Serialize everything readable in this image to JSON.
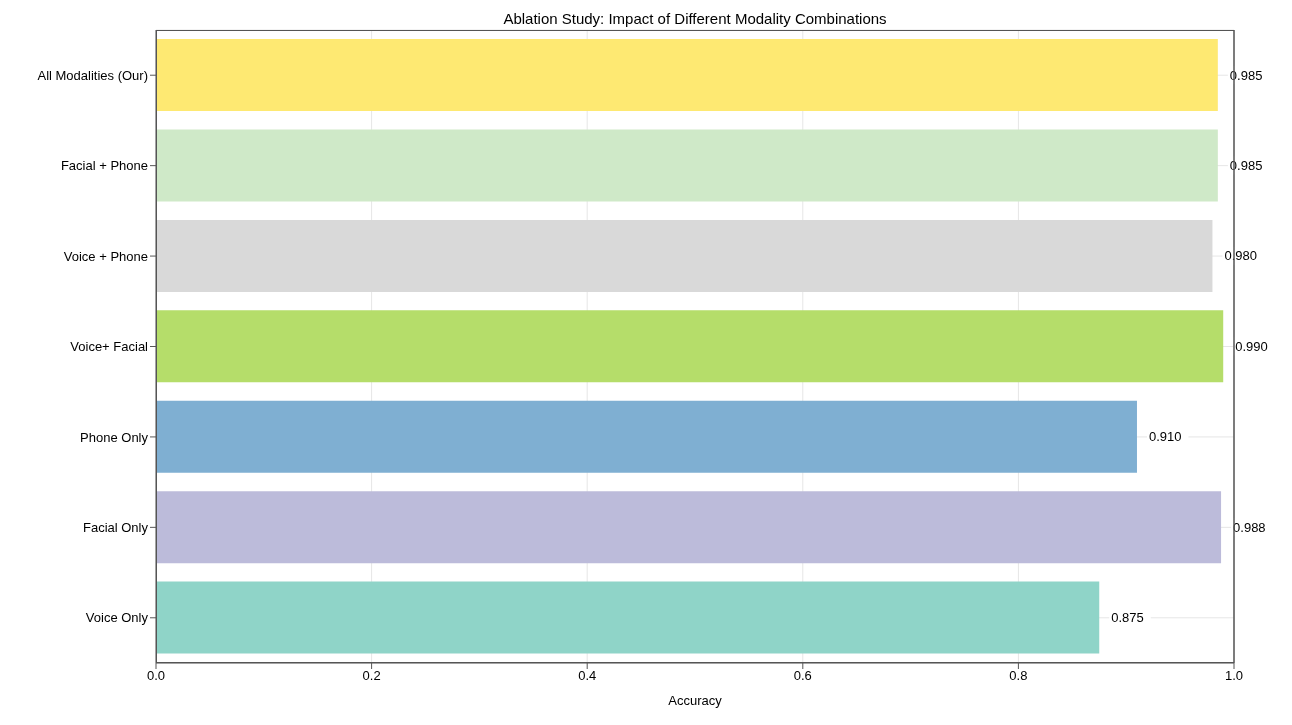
{
  "chart_data": {
    "type": "bar",
    "orientation": "horizontal",
    "title": "Ablation Study: Impact of Different Modality Combinations",
    "xlabel": "Accuracy",
    "categories": [
      "All Modalities (Our)",
      "Facial + Phone",
      "Voice + Phone",
      "Voice+ Facial",
      "Phone Only",
      "Facial Only",
      "Voice Only"
    ],
    "values": [
      0.985,
      0.985,
      0.98,
      0.99,
      0.91,
      0.988,
      0.875
    ],
    "value_labels": [
      "0.985",
      "0.985",
      "0.980",
      "0.990",
      "0.910",
      "0.988",
      "0.875"
    ],
    "colors": [
      "#fee972",
      "#cfe9c8",
      "#d9d9d9",
      "#b5dd6a",
      "#7fafd2",
      "#bcbbda",
      "#8fd4c8"
    ],
    "xlim": [
      0,
      1
    ],
    "xticks": [
      {
        "value": 0,
        "label": "0.0"
      },
      {
        "value": 0.2,
        "label": "0.2"
      },
      {
        "value": 0.4,
        "label": "0.4"
      },
      {
        "value": 0.6,
        "label": "0.6"
      },
      {
        "value": 0.8,
        "label": "0.8"
      },
      {
        "value": 1,
        "label": "1.0"
      }
    ],
    "grid": true
  }
}
